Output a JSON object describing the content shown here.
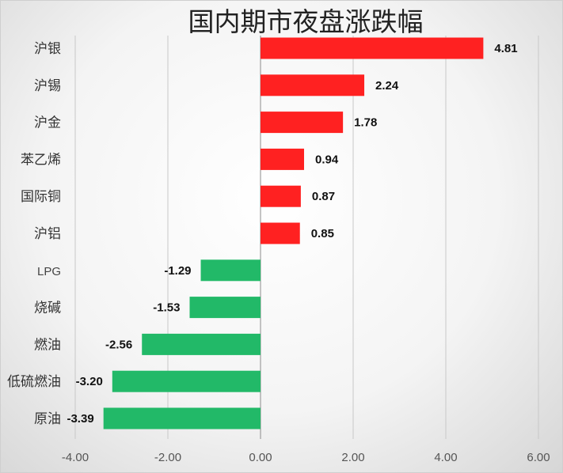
{
  "chart_data": {
    "type": "bar",
    "orientation": "horizontal",
    "title": "国内期市夜盘涨跌幅",
    "categories": [
      "沪银",
      "沪锡",
      "沪金",
      "苯乙烯",
      "国际铜",
      "沪铝",
      "LPG",
      "烧碱",
      "燃油",
      "低硫燃油",
      "原油"
    ],
    "values": [
      4.81,
      2.24,
      1.78,
      0.94,
      0.87,
      0.85,
      -1.29,
      -1.53,
      -2.56,
      -3.2,
      -3.39
    ],
    "value_labels": [
      "4.81",
      "2.24",
      "1.78",
      "0.94",
      "0.87",
      "0.85",
      "-1.29",
      "-1.53",
      "-2.56",
      "-3.20",
      "-3.39"
    ],
    "xlim": [
      -4,
      6
    ],
    "xticks": [
      -4,
      -2,
      0,
      2,
      4,
      6
    ],
    "xtick_labels": [
      "-4.00",
      "-2.00",
      "0.00",
      "2.00",
      "4.00",
      "6.00"
    ],
    "grid": true,
    "legend": "none",
    "colors": {
      "positive": "#ff2121",
      "negative": "#22b968"
    }
  }
}
